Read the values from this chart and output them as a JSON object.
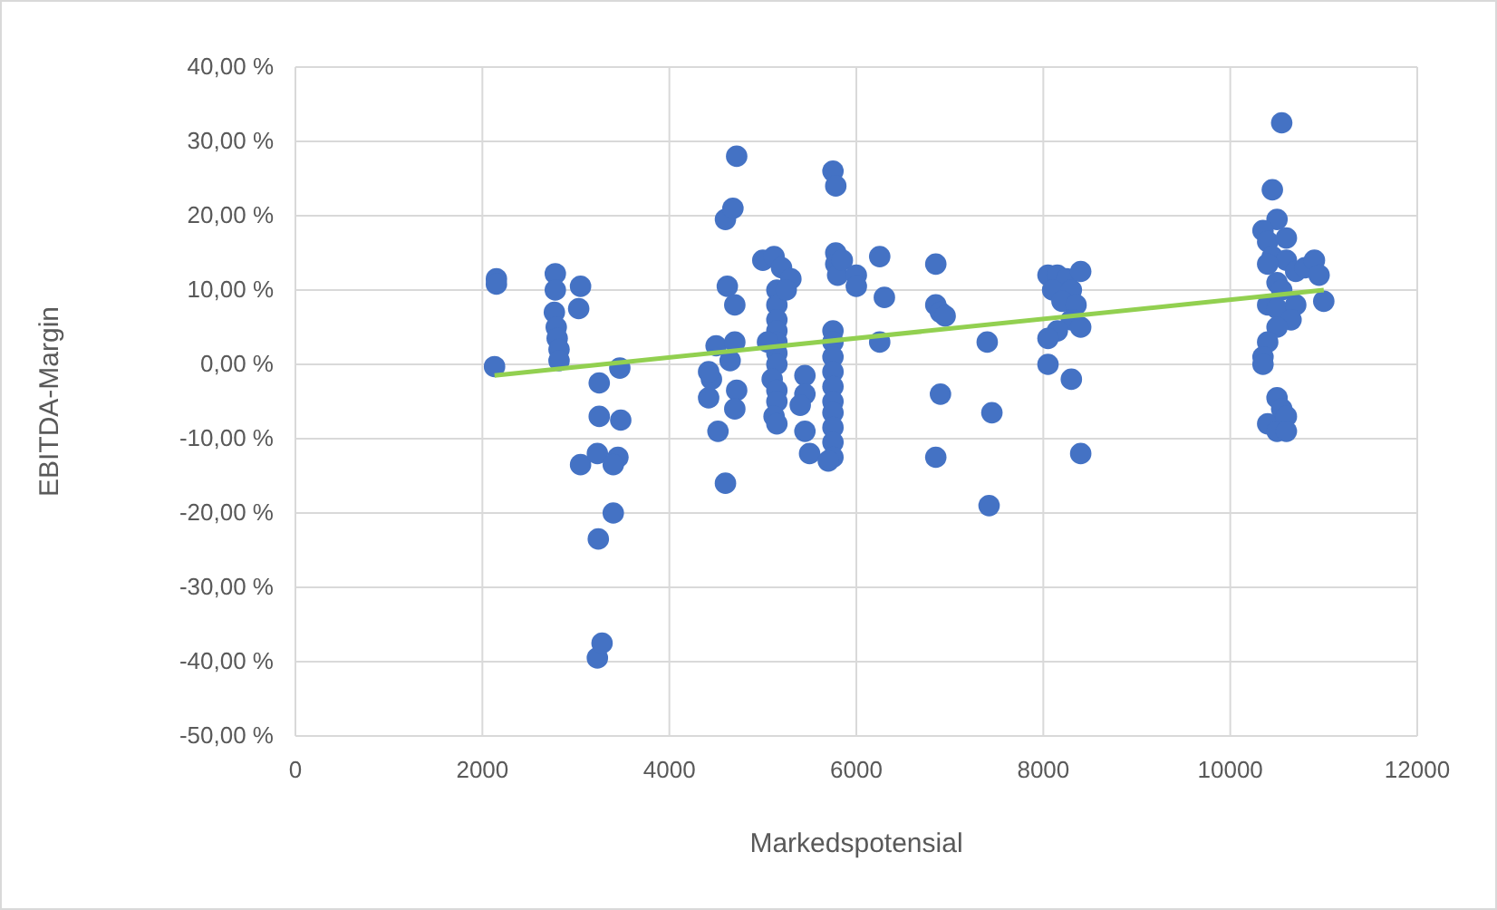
{
  "chart_data": {
    "type": "scatter",
    "xlabel": "Markedspotensial",
    "ylabel": "EBITDA-Margin",
    "xlim": [
      0,
      12000
    ],
    "xticks": [
      0,
      2000,
      4000,
      6000,
      8000,
      10000,
      12000
    ],
    "ylim": [
      -50,
      40
    ],
    "yticks": [
      {
        "value": 40,
        "label": "40,00 %"
      },
      {
        "value": 30,
        "label": "30,00 %"
      },
      {
        "value": 20,
        "label": "20,00 %"
      },
      {
        "value": 10,
        "label": "10,00 %"
      },
      {
        "value": 0,
        "label": "0,00 %"
      },
      {
        "value": -10,
        "label": "-10,00 %"
      },
      {
        "value": -20,
        "label": "-20,00 %"
      },
      {
        "value": -30,
        "label": "-30,00 %"
      },
      {
        "value": -40,
        "label": "-40,00 %"
      },
      {
        "value": -50,
        "label": "-50,00 %"
      }
    ],
    "grid": true,
    "marker": "circle",
    "series": [
      {
        "color": "#4472c4",
        "x": [
          2150,
          2150,
          2130,
          2780,
          2780,
          2770,
          2790,
          2800,
          2820,
          2820,
          3050,
          3030,
          3050,
          3250,
          3250,
          3230,
          3240,
          3230,
          3280,
          3470,
          3480,
          3450,
          3400,
          3400,
          4420,
          4450,
          4420,
          4500,
          4520,
          4600,
          4620,
          4680,
          4720,
          4700,
          4650,
          4700,
          4720,
          4700,
          4600,
          5000,
          5120,
          5200,
          5150,
          5150,
          5150,
          5150,
          5150,
          5150,
          5150,
          5100,
          5150,
          5150,
          5120,
          5150,
          5300,
          5250,
          5050,
          5450,
          5450,
          5400,
          5450,
          5500,
          5750,
          5780,
          5780,
          5780,
          5800,
          5750,
          5750,
          5750,
          5750,
          5750,
          5750,
          5750,
          5750,
          5750,
          5750,
          5700,
          5850,
          6000,
          6000,
          6250,
          6300,
          6250,
          6850,
          6850,
          6900,
          6950,
          6900,
          6850,
          7400,
          7450,
          7420,
          8050,
          8150,
          8250,
          8100,
          8300,
          8200,
          8350,
          8300,
          8150,
          8050,
          8050,
          8300,
          8400,
          8400,
          8400,
          10550,
          10450,
          10500,
          10350,
          10400,
          10600,
          10450,
          10600,
          10400,
          10500,
          10550,
          10700,
          10800,
          10900,
          10950,
          10400,
          10500,
          10700,
          11000,
          10650,
          10500,
          10400,
          10350,
          10350,
          10400,
          10500,
          10550,
          10600,
          10500,
          10600
        ],
        "values": [
          11.5,
          10.8,
          -0.3,
          12.2,
          10,
          7,
          5,
          3.5,
          2,
          0.5,
          10.5,
          7.5,
          -13.5,
          -2.5,
          -7,
          -12,
          -23.5,
          -39.5,
          -37.5,
          -0.5,
          -7.5,
          -12.5,
          -13.5,
          -20,
          -4.5,
          -2,
          -1,
          2.5,
          -9,
          19.5,
          10.5,
          21,
          28,
          8,
          0.5,
          3,
          -3.5,
          -6,
          -16,
          14,
          14.5,
          13,
          10,
          8,
          6,
          4.5,
          3,
          1.5,
          0,
          -2,
          -3.5,
          -5,
          -7,
          -8,
          11.5,
          10,
          3,
          -1.5,
          -4,
          -5.5,
          -9,
          -12,
          26,
          24,
          15,
          13.5,
          12,
          4.5,
          3,
          1,
          -1,
          -3,
          -5,
          -6.5,
          -8.5,
          -10.5,
          -12.5,
          -13,
          14,
          12,
          10.5,
          14.5,
          9,
          3,
          13.5,
          8,
          7,
          6.5,
          -4,
          -12.5,
          3,
          -6.5,
          -19,
          12,
          12,
          11.5,
          10,
          10,
          8.5,
          8,
          6,
          4.5,
          3.5,
          0,
          -2,
          5,
          12.5,
          -12,
          32.5,
          23.5,
          19.5,
          18,
          16.5,
          17,
          14.5,
          14,
          13.5,
          11,
          10,
          12.5,
          13,
          14,
          12,
          8,
          7.5,
          8,
          8.5,
          6,
          5,
          3,
          1,
          0,
          -8,
          -4.5,
          -6,
          -7,
          -9,
          -9
        ]
      },
      {
        "type": "line",
        "color": "#92d050",
        "marker": "none",
        "x": [
          2130,
          11000
        ],
        "values": [
          -1.5,
          10
        ]
      }
    ]
  }
}
